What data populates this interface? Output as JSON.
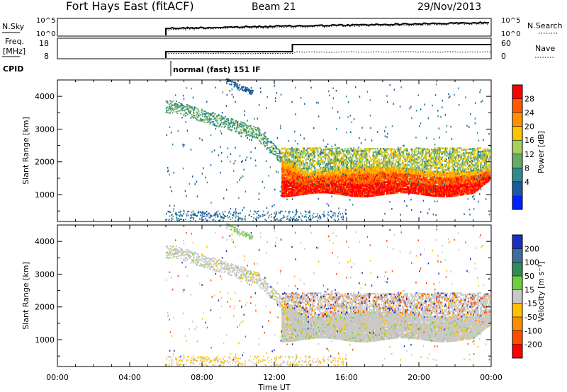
{
  "header": {
    "title": "Fort Hays East (fitACF)",
    "beam": "Beam 21",
    "date": "29/Nov/2013"
  },
  "aux_panels": {
    "nsky_label": "N.Sky",
    "nsky_ticks": [
      "10^5",
      "10^0"
    ],
    "nsearch_label": "N.Search",
    "nsearch_ticks": [
      "10^5",
      "10^0"
    ],
    "freq_label_line1": "Freq.",
    "freq_label_line2": "[MHz]",
    "freq_ticks": [
      "18",
      "8"
    ],
    "nave_label": "Nave",
    "nave_ticks": [
      "60",
      "0"
    ],
    "cpid_label": "CPID",
    "cpid_text": "normal (fast) 151 IF"
  },
  "chart_data": [
    {
      "type": "heatmap",
      "name": "Power",
      "ylabel": "Slant Range [km]",
      "xlabel": "Time UT",
      "x_ticks": [
        "00:00",
        "04:00",
        "08:00",
        "12:00",
        "16:00",
        "20:00",
        "00:00"
      ],
      "y_ticks": [
        "1000",
        "2000",
        "3000",
        "4000"
      ],
      "xlim_hours": [
        0,
        24
      ],
      "ylim_km": [
        180,
        4500
      ],
      "colorbar_label": "Power [dB]",
      "colorbar_ticks": [
        "28",
        "24",
        "20",
        "16",
        "12",
        "8",
        "4"
      ],
      "colorbar_colors": [
        "#ff0000",
        "#ff5a00",
        "#ff9000",
        "#ffc400",
        "#a5d05a",
        "#66aa66",
        "#2e8c8c",
        "#1a5aa0",
        "#0020ff"
      ]
    },
    {
      "type": "heatmap",
      "name": "Velocity",
      "ylabel": "Slant Range [km]",
      "xlabel": "Time UT",
      "x_ticks": [
        "00:00",
        "04:00",
        "08:00",
        "12:00",
        "16:00",
        "20:00",
        "00:00"
      ],
      "y_ticks": [
        "1000",
        "2000",
        "3000",
        "4000"
      ],
      "xlim_hours": [
        0,
        24
      ],
      "ylim_km": [
        180,
        4500
      ],
      "colorbar_label": "Velocity [m s⁻¹]",
      "colorbar_ticks": [
        "200",
        "100",
        "50",
        "15",
        "-15",
        "-50",
        "-100",
        "-200"
      ],
      "colorbar_colors": [
        "#1a2fc0",
        "#3c6e9e",
        "#2e8c5a",
        "#6ccf3c",
        "#c8c8c8",
        "#ffc000",
        "#ff8c00",
        "#ff4c00",
        "#ff0000"
      ]
    }
  ],
  "xaxis": {
    "labels": [
      "00:00",
      "04:00",
      "08:00",
      "12:00",
      "16:00",
      "20:00",
      "00:00"
    ],
    "title": "Time UT"
  }
}
